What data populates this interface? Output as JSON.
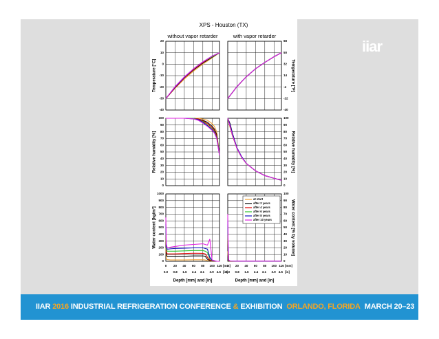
{
  "figure": {
    "title": "XPS - Houston (TX)",
    "columns": [
      "without vapor retarder",
      "with vapor retarder"
    ]
  },
  "logo": "iiar",
  "banner": [
    "IIAR",
    "2016",
    "INDUSTRIAL REFRIGERATION CONFERENCE",
    "&",
    "EXHIBITION",
    "ORLANDO, FLORIDA",
    "MARCH 20–23"
  ],
  "chart_data": [
    {
      "type": "line",
      "ylabel": "Temperature [°C]",
      "ylim": [
        -40,
        20
      ],
      "yticks": [
        -40,
        -30,
        -20,
        -10,
        0,
        10,
        20
      ],
      "xlim": [
        0,
        116
      ],
      "x": [
        0,
        20,
        40,
        60,
        80,
        100,
        116
      ],
      "series": [
        {
          "color": "#f0a030",
          "values": [
            -30,
            -21,
            -13,
            -6,
            0,
            5.5,
            10
          ]
        },
        {
          "color": "#000000",
          "values": [
            -30,
            -20.5,
            -12,
            -5,
            1,
            6,
            10
          ]
        },
        {
          "color": "#e00000",
          "values": [
            -30,
            -20.5,
            -12,
            -4.5,
            1.5,
            6.5,
            10
          ]
        },
        {
          "color": "#30c030",
          "values": [
            -30,
            -20,
            -11.5,
            -4,
            2,
            6.5,
            10
          ]
        },
        {
          "color": "#1010c0",
          "values": [
            -30,
            -20,
            -11.5,
            -4,
            2,
            7,
            10
          ]
        },
        {
          "color": "#e020e0",
          "values": [
            -30,
            -19.5,
            -11,
            -4,
            2,
            7,
            10
          ]
        }
      ]
    },
    {
      "type": "line",
      "y2label": "Temperature [°F]",
      "ylim": [
        -40,
        20
      ],
      "y2lim": [
        -40,
        68
      ],
      "y2ticks": [
        -40,
        -22,
        -4,
        14,
        32,
        50,
        68
      ],
      "xlim": [
        0,
        116
      ],
      "x": [
        0,
        20,
        40,
        60,
        80,
        100,
        116
      ],
      "series": [
        {
          "color": "#f0a030",
          "values": [
            -30,
            -19.5,
            -11,
            -4,
            1.5,
            6.5,
            10
          ]
        },
        {
          "color": "#000000",
          "values": [
            -30,
            -19.5,
            -11,
            -4,
            1.5,
            6.5,
            10
          ]
        },
        {
          "color": "#e00000",
          "values": [
            -30,
            -19.5,
            -11,
            -4,
            1.5,
            6.5,
            10
          ]
        },
        {
          "color": "#30c030",
          "values": [
            -30,
            -19.5,
            -11,
            -4,
            1.5,
            6.5,
            10
          ]
        },
        {
          "color": "#1010c0",
          "values": [
            -30,
            -19.5,
            -11,
            -4,
            1.5,
            6.5,
            10
          ]
        },
        {
          "color": "#e020e0",
          "values": [
            -30,
            -19.5,
            -11,
            -4,
            1.5,
            6.5,
            10
          ]
        }
      ]
    },
    {
      "type": "line",
      "ylabel": "Relative humidity [%]",
      "ylim": [
        0,
        100
      ],
      "yticks": [
        0,
        10,
        20,
        30,
        40,
        50,
        60,
        70,
        80,
        90,
        100
      ],
      "xlim": [
        0,
        116
      ],
      "x": [
        0,
        20,
        40,
        60,
        70,
        80,
        90,
        100,
        105,
        110,
        116
      ],
      "series": [
        {
          "color": "#f0a030",
          "values": [
            100,
            100,
            100,
            100,
            100,
            99,
            97,
            92,
            88,
            80,
            45
          ]
        },
        {
          "color": "#000000",
          "values": [
            100,
            100,
            100,
            100,
            99,
            97,
            94,
            88,
            84,
            76,
            45
          ]
        },
        {
          "color": "#e00000",
          "values": [
            100,
            100,
            100,
            100,
            99,
            96,
            92,
            86,
            82,
            74,
            45
          ]
        },
        {
          "color": "#30c030",
          "values": [
            100,
            100,
            100,
            100,
            98,
            95,
            90,
            84,
            80,
            72,
            45
          ]
        },
        {
          "color": "#1010c0",
          "values": [
            100,
            100,
            100,
            99,
            98,
            94,
            89,
            83,
            79,
            71,
            45
          ]
        },
        {
          "color": "#e020e0",
          "values": [
            100,
            100,
            100,
            99,
            97,
            93,
            88,
            82,
            78,
            70,
            45
          ]
        }
      ]
    },
    {
      "type": "line",
      "y2label": "Relative humidity [%]",
      "ylim": [
        0,
        100
      ],
      "y2lim": [
        0,
        100
      ],
      "y2ticks": [
        0,
        10,
        20,
        30,
        40,
        50,
        60,
        70,
        80,
        90,
        100
      ],
      "xlim": [
        0,
        116
      ],
      "x": [
        0,
        5,
        10,
        20,
        30,
        40,
        60,
        80,
        100,
        116
      ],
      "series": [
        {
          "color": "#f0a030",
          "values": [
            100,
            86,
            74,
            55,
            42,
            33,
            22,
            15,
            11,
            8
          ]
        },
        {
          "color": "#000000",
          "values": [
            100,
            92,
            78,
            56,
            43,
            33,
            22,
            15,
            11,
            8
          ]
        },
        {
          "color": "#e00000",
          "values": [
            100,
            88,
            75,
            55,
            42,
            33,
            22,
            15,
            11,
            8
          ]
        },
        {
          "color": "#30c030",
          "values": [
            100,
            88,
            75,
            55,
            42,
            33,
            22,
            15,
            11,
            8
          ]
        },
        {
          "color": "#1010c0",
          "values": [
            100,
            90,
            77,
            56,
            43,
            33,
            22,
            15,
            11,
            8
          ]
        },
        {
          "color": "#e020e0",
          "values": [
            100,
            88,
            75,
            55,
            42,
            33,
            22,
            15,
            11,
            8
          ]
        }
      ]
    },
    {
      "type": "line",
      "ylabel": "Water content [kg/m³]",
      "xlabel": "Depth [mm] and [in]",
      "ylim": [
        0,
        1000
      ],
      "yticks": [
        0,
        100,
        200,
        300,
        400,
        500,
        600,
        700,
        800,
        900,
        1000
      ],
      "xlim": [
        0,
        116
      ],
      "xticks": [
        0,
        20,
        40,
        60,
        80,
        100,
        116
      ],
      "xunit": "[mm]",
      "x2lim": [
        0,
        4.567
      ],
      "x2ticks": [
        {
          "value": 0,
          "label": "0.0"
        },
        0.8,
        1.6,
        2.4,
        3.1,
        3.9,
        4.5
      ],
      "x2unit": "[in]",
      "x": [
        0,
        1,
        3,
        10,
        20,
        40,
        60,
        80,
        85,
        90,
        95,
        100,
        110,
        116
      ],
      "series": [
        {
          "color": "#f0a030",
          "values": [
            200,
            40,
            25,
            20,
            20,
            20,
            22,
            22,
            20,
            10,
            5,
            2,
            0,
            0
          ]
        },
        {
          "color": "#000000",
          "values": [
            300,
            100,
            70,
            70,
            70,
            75,
            80,
            80,
            75,
            30,
            10,
            3,
            0,
            0
          ]
        },
        {
          "color": "#e00000",
          "values": [
            400,
            140,
            110,
            110,
            110,
            115,
            120,
            118,
            110,
            60,
            20,
            5,
            0,
            0
          ]
        },
        {
          "color": "#30c030",
          "values": [
            500,
            180,
            150,
            150,
            150,
            155,
            160,
            160,
            150,
            130,
            40,
            10,
            0,
            0
          ]
        },
        {
          "color": "#1010c0",
          "values": [
            550,
            220,
            180,
            185,
            190,
            195,
            200,
            200,
            190,
            180,
            60,
            15,
            0,
            0
          ]
        },
        {
          "color": "#e020e0",
          "values": [
            650,
            260,
            200,
            210,
            220,
            240,
            250,
            260,
            250,
            240,
            330,
            20,
            0,
            0
          ]
        }
      ]
    },
    {
      "type": "line",
      "y2label": "Water content [% by volume]",
      "xlabel": "Depth [mm] and [in]",
      "ylim": [
        0,
        1000
      ],
      "y2lim": [
        0,
        100
      ],
      "y2ticks": [
        0,
        10,
        20,
        30,
        40,
        50,
        60,
        70,
        80,
        90,
        100
      ],
      "xlim": [
        0,
        116
      ],
      "xticks": [
        0,
        20,
        40,
        60,
        80,
        100,
        116
      ],
      "xunit": "[mm]",
      "x2lim": [
        0,
        4.567
      ],
      "x2ticks": [
        {
          "value": 0,
          "label": "0.0"
        },
        0.8,
        1.6,
        2.4,
        3.1,
        3.9,
        4.5
      ],
      "x2unit": "[in]",
      "legend": "upper right",
      "x": [
        0,
        1,
        2,
        5,
        20,
        60,
        100,
        116
      ],
      "series": [
        {
          "name": "at start",
          "color": "#f0a030",
          "values": [
            150,
            40,
            5,
            3,
            3,
            3,
            3,
            3
          ]
        },
        {
          "name": "after 2 years",
          "color": "#000000",
          "values": [
            300,
            80,
            10,
            4,
            3,
            3,
            3,
            3
          ]
        },
        {
          "name": "after 4 years",
          "color": "#e00000",
          "values": [
            400,
            110,
            12,
            4,
            3,
            3,
            3,
            3
          ]
        },
        {
          "name": "after 6 years",
          "color": "#30c030",
          "values": [
            500,
            140,
            15,
            5,
            3,
            3,
            3,
            3
          ]
        },
        {
          "name": "after 8 years",
          "color": "#1010c0",
          "values": [
            600,
            170,
            18,
            5,
            3,
            3,
            3,
            3
          ]
        },
        {
          "name": "after 10 years",
          "color": "#e020e0",
          "values": [
            700,
            200,
            20,
            5,
            3,
            3,
            3,
            3
          ]
        }
      ]
    }
  ]
}
